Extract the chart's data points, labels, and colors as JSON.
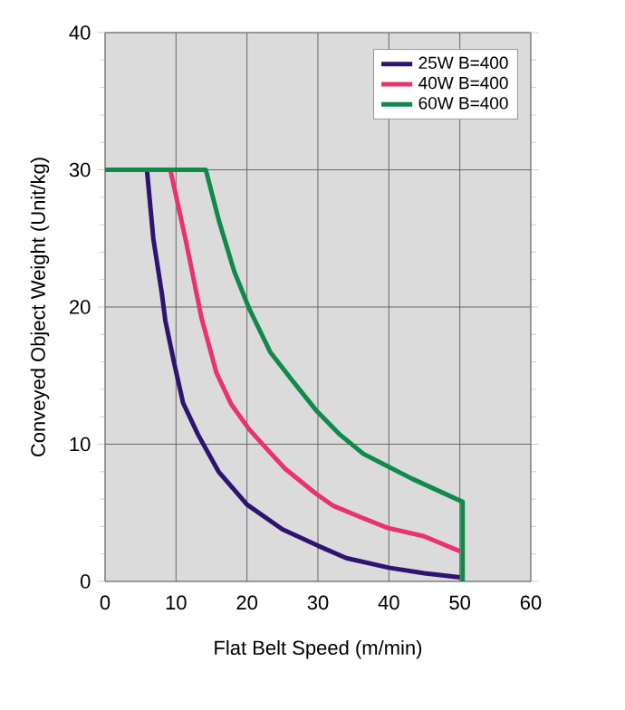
{
  "chart_data": {
    "type": "line",
    "xlabel": "Flat Belt Speed (m/min)",
    "ylabel": "Conveyed Object Weight (Unit/kg)",
    "xlim": [
      0,
      60
    ],
    "ylim": [
      0,
      40
    ],
    "xticks": [
      0,
      10,
      20,
      30,
      40,
      50,
      60
    ],
    "yticks": [
      0,
      10,
      20,
      30,
      40
    ],
    "grid": true,
    "legend": "top right",
    "marker": "none",
    "line_style": "solid",
    "series": [
      {
        "name": "25W B=400",
        "color": "#2e1470",
        "x": [
          0,
          5.9,
          6.8,
          8.0,
          8.5,
          9.7,
          11,
          13.1,
          16,
          20,
          25,
          30,
          34,
          40,
          45,
          50
        ],
        "values": [
          30,
          30,
          25,
          21,
          19,
          16,
          13,
          10.7,
          8,
          5.6,
          3.8,
          2.6,
          1.7,
          1.0,
          0.6,
          0.3
        ]
      },
      {
        "name": "40W B=400",
        "color": "#e8336f",
        "x": [
          0,
          9.2,
          11.4,
          13.6,
          15.7,
          17.8,
          20.3,
          22.9,
          25.4,
          29.7,
          32.2,
          36.4,
          39.8,
          44.9,
          50
        ],
        "values": [
          30,
          30,
          24.8,
          19.2,
          15.2,
          12.9,
          11.1,
          9.6,
          8.2,
          6.4,
          5.5,
          4.6,
          3.9,
          3.3,
          2.2
        ]
      },
      {
        "name": "60W B=400",
        "color": "#0f8a4a",
        "x": [
          0,
          14.2,
          16.1,
          18.2,
          20.3,
          23.3,
          26.3,
          29.7,
          33.1,
          36.4,
          39.8,
          43.2,
          50.4,
          50.4
        ],
        "values": [
          30,
          30,
          26.2,
          22.6,
          19.9,
          16.7,
          14.7,
          12.5,
          10.7,
          9.3,
          8.4,
          7.5,
          5.8,
          0
        ]
      }
    ]
  }
}
